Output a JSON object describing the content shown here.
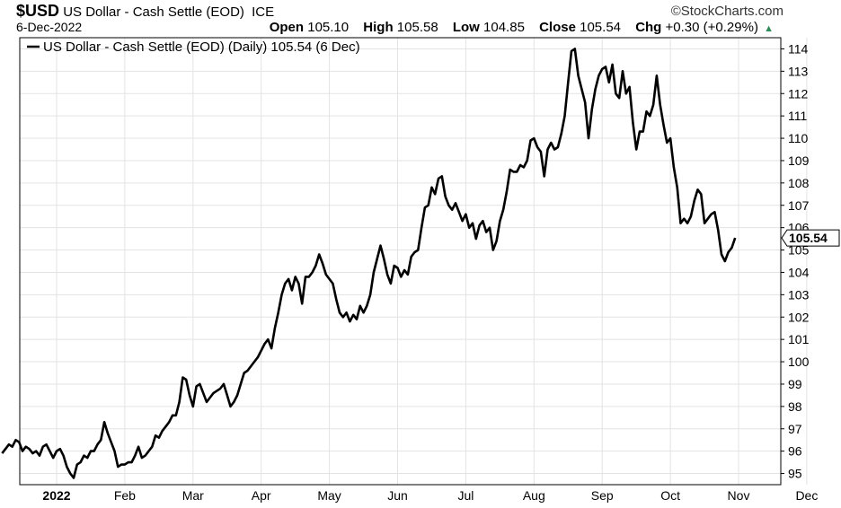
{
  "header": {
    "symbol": "$USD",
    "name": "US Dollar - Cash Settle (EOD)",
    "exchange": "ICE",
    "date": "6-Dec-2022",
    "brand": "©StockCharts.com",
    "open_label": "Open",
    "open": "105.10",
    "high_label": "High",
    "high": "105.58",
    "low_label": "Low",
    "low": "104.85",
    "close_label": "Close",
    "close": "105.54",
    "chg_label": "Chg",
    "chg": "+0.30 (+0.29%)"
  },
  "chart_data": {
    "type": "line",
    "legend": "US Dollar - Cash Settle (EOD) (Daily) 105.54 (6 Dec)",
    "legend_position": "top-left",
    "last_value_label": "105.54",
    "ylim": [
      94.5,
      114.5
    ],
    "y_ticks": [
      95,
      96,
      97,
      98,
      99,
      100,
      101,
      102,
      103,
      104,
      105,
      106,
      107,
      108,
      109,
      110,
      111,
      112,
      113,
      114
    ],
    "x_ticks": [
      {
        "label": "2022",
        "month": 0,
        "bold": true
      },
      {
        "label": "Feb",
        "month": 1
      },
      {
        "label": "Mar",
        "month": 2
      },
      {
        "label": "Apr",
        "month": 3
      },
      {
        "label": "May",
        "month": 4
      },
      {
        "label": "Jun",
        "month": 5
      },
      {
        "label": "Jul",
        "month": 6
      },
      {
        "label": "Aug",
        "month": 7
      },
      {
        "label": "Sep",
        "month": 8
      },
      {
        "label": "Oct",
        "month": 9
      },
      {
        "label": "Nov",
        "month": 10
      },
      {
        "label": "Dec",
        "month": 11
      }
    ],
    "grid": true,
    "series": [
      {
        "values": [
          [
            -0.8,
            95.9
          ],
          [
            -0.75,
            96.1
          ],
          [
            -0.7,
            96.3
          ],
          [
            -0.65,
            96.2
          ],
          [
            -0.6,
            96.5
          ],
          [
            -0.55,
            96.4
          ],
          [
            -0.5,
            96.0
          ],
          [
            -0.45,
            96.2
          ],
          [
            -0.4,
            96.1
          ],
          [
            -0.35,
            95.9
          ],
          [
            -0.3,
            96.0
          ],
          [
            -0.25,
            95.8
          ],
          [
            -0.2,
            96.2
          ],
          [
            -0.15,
            96.3
          ],
          [
            -0.1,
            96.0
          ],
          [
            -0.05,
            95.7
          ],
          [
            0.0,
            96.0
          ],
          [
            0.05,
            96.1
          ],
          [
            0.1,
            95.8
          ],
          [
            0.15,
            95.3
          ],
          [
            0.2,
            95.0
          ],
          [
            0.25,
            94.8
          ],
          [
            0.3,
            95.4
          ],
          [
            0.35,
            95.5
          ],
          [
            0.4,
            95.8
          ],
          [
            0.45,
            95.7
          ],
          [
            0.5,
            96.0
          ],
          [
            0.55,
            96.0
          ],
          [
            0.6,
            96.3
          ],
          [
            0.65,
            96.5
          ],
          [
            0.7,
            97.3
          ],
          [
            0.75,
            96.8
          ],
          [
            0.8,
            96.4
          ],
          [
            0.85,
            96.0
          ],
          [
            0.9,
            95.3
          ],
          [
            0.95,
            95.4
          ],
          [
            1.0,
            95.4
          ],
          [
            1.05,
            95.5
          ],
          [
            1.1,
            95.5
          ],
          [
            1.15,
            95.8
          ],
          [
            1.2,
            96.2
          ],
          [
            1.25,
            95.7
          ],
          [
            1.3,
            95.8
          ],
          [
            1.35,
            96.0
          ],
          [
            1.4,
            96.2
          ],
          [
            1.45,
            96.7
          ],
          [
            1.5,
            96.6
          ],
          [
            1.55,
            96.9
          ],
          [
            1.6,
            97.1
          ],
          [
            1.65,
            97.3
          ],
          [
            1.7,
            97.6
          ],
          [
            1.75,
            97.6
          ],
          [
            1.8,
            98.2
          ],
          [
            1.85,
            99.3
          ],
          [
            1.9,
            99.2
          ],
          [
            1.95,
            98.5
          ],
          [
            2.0,
            98.0
          ],
          [
            2.05,
            98.9
          ],
          [
            2.1,
            99.0
          ],
          [
            2.15,
            98.6
          ],
          [
            2.2,
            98.2
          ],
          [
            2.25,
            98.4
          ],
          [
            2.3,
            98.6
          ],
          [
            2.35,
            98.7
          ],
          [
            2.4,
            98.8
          ],
          [
            2.45,
            99.0
          ],
          [
            2.5,
            98.5
          ],
          [
            2.55,
            98.0
          ],
          [
            2.6,
            98.2
          ],
          [
            2.65,
            98.5
          ],
          [
            2.7,
            99.0
          ],
          [
            2.75,
            99.5
          ],
          [
            2.8,
            99.6
          ],
          [
            2.85,
            99.8
          ],
          [
            2.9,
            100.0
          ],
          [
            2.95,
            100.2
          ],
          [
            3.0,
            100.5
          ],
          [
            3.05,
            100.8
          ],
          [
            3.1,
            101.0
          ],
          [
            3.15,
            100.6
          ],
          [
            3.2,
            101.5
          ],
          [
            3.25,
            102.2
          ],
          [
            3.3,
            103.0
          ],
          [
            3.35,
            103.5
          ],
          [
            3.4,
            103.7
          ],
          [
            3.45,
            103.2
          ],
          [
            3.5,
            103.8
          ],
          [
            3.55,
            103.5
          ],
          [
            3.6,
            102.6
          ],
          [
            3.65,
            103.8
          ],
          [
            3.7,
            103.8
          ],
          [
            3.75,
            104.0
          ],
          [
            3.8,
            104.3
          ],
          [
            3.85,
            104.8
          ],
          [
            3.9,
            104.4
          ],
          [
            3.95,
            103.9
          ],
          [
            4.0,
            103.7
          ],
          [
            4.05,
            103.5
          ],
          [
            4.1,
            102.8
          ],
          [
            4.15,
            102.2
          ],
          [
            4.2,
            102.0
          ],
          [
            4.25,
            102.2
          ],
          [
            4.3,
            101.8
          ],
          [
            4.35,
            102.1
          ],
          [
            4.4,
            101.9
          ],
          [
            4.45,
            102.5
          ],
          [
            4.5,
            102.2
          ],
          [
            4.55,
            102.5
          ],
          [
            4.6,
            103.0
          ],
          [
            4.65,
            104.0
          ],
          [
            4.7,
            104.6
          ],
          [
            4.75,
            105.2
          ],
          [
            4.8,
            104.6
          ],
          [
            4.85,
            103.9
          ],
          [
            4.9,
            103.5
          ],
          [
            4.95,
            104.3
          ],
          [
            5.0,
            104.2
          ],
          [
            5.05,
            103.8
          ],
          [
            5.1,
            104.1
          ],
          [
            5.15,
            103.9
          ],
          [
            5.2,
            104.7
          ],
          [
            5.25,
            104.9
          ],
          [
            5.3,
            105.0
          ],
          [
            5.35,
            106.0
          ],
          [
            5.4,
            106.9
          ],
          [
            5.45,
            107.0
          ],
          [
            5.5,
            107.8
          ],
          [
            5.55,
            107.5
          ],
          [
            5.6,
            108.2
          ],
          [
            5.65,
            108.3
          ],
          [
            5.7,
            107.4
          ],
          [
            5.75,
            107.0
          ],
          [
            5.8,
            106.8
          ],
          [
            5.85,
            107.1
          ],
          [
            5.9,
            106.7
          ],
          [
            5.95,
            106.3
          ],
          [
            6.0,
            106.6
          ],
          [
            6.05,
            106.0
          ],
          [
            6.1,
            106.2
          ],
          [
            6.15,
            105.5
          ],
          [
            6.2,
            106.1
          ],
          [
            6.25,
            106.3
          ],
          [
            6.3,
            105.8
          ],
          [
            6.35,
            106.0
          ],
          [
            6.4,
            105.0
          ],
          [
            6.45,
            105.4
          ],
          [
            6.5,
            106.3
          ],
          [
            6.55,
            106.8
          ],
          [
            6.6,
            107.6
          ],
          [
            6.65,
            108.6
          ],
          [
            6.7,
            108.5
          ],
          [
            6.75,
            108.5
          ],
          [
            6.8,
            108.8
          ],
          [
            6.85,
            108.7
          ],
          [
            6.9,
            109.0
          ],
          [
            6.95,
            109.9
          ],
          [
            7.0,
            110.0
          ],
          [
            7.05,
            109.6
          ],
          [
            7.1,
            109.4
          ],
          [
            7.15,
            108.3
          ],
          [
            7.2,
            109.5
          ],
          [
            7.25,
            109.8
          ],
          [
            7.3,
            109.5
          ],
          [
            7.35,
            109.6
          ],
          [
            7.4,
            110.2
          ],
          [
            7.45,
            111.0
          ],
          [
            7.5,
            112.5
          ],
          [
            7.55,
            113.9
          ],
          [
            7.6,
            114.0
          ],
          [
            7.65,
            112.8
          ],
          [
            7.7,
            112.2
          ],
          [
            7.75,
            111.6
          ],
          [
            7.8,
            110.0
          ],
          [
            7.85,
            111.3
          ],
          [
            7.9,
            112.2
          ],
          [
            7.95,
            112.8
          ],
          [
            8.0,
            113.1
          ],
          [
            8.05,
            113.2
          ],
          [
            8.1,
            112.5
          ],
          [
            8.15,
            113.3
          ],
          [
            8.2,
            112.0
          ],
          [
            8.25,
            111.8
          ],
          [
            8.3,
            113.0
          ],
          [
            8.35,
            112.0
          ],
          [
            8.4,
            112.3
          ],
          [
            8.45,
            110.7
          ],
          [
            8.5,
            109.5
          ],
          [
            8.55,
            110.3
          ],
          [
            8.6,
            110.3
          ],
          [
            8.65,
            111.2
          ],
          [
            8.7,
            111.0
          ],
          [
            8.75,
            111.5
          ],
          [
            8.8,
            112.8
          ],
          [
            8.85,
            111.5
          ],
          [
            8.9,
            110.6
          ],
          [
            8.95,
            109.8
          ],
          [
            9.0,
            110.0
          ],
          [
            9.05,
            108.7
          ],
          [
            9.1,
            107.8
          ],
          [
            9.15,
            106.2
          ],
          [
            9.2,
            106.4
          ],
          [
            9.25,
            106.2
          ],
          [
            9.3,
            106.5
          ],
          [
            9.35,
            107.2
          ],
          [
            9.4,
            107.7
          ],
          [
            9.45,
            107.5
          ],
          [
            9.5,
            106.2
          ],
          [
            9.55,
            106.4
          ],
          [
            9.6,
            106.6
          ],
          [
            9.65,
            106.7
          ],
          [
            9.7,
            105.9
          ],
          [
            9.75,
            104.8
          ],
          [
            9.8,
            104.5
          ],
          [
            9.85,
            104.9
          ],
          [
            9.9,
            105.1
          ],
          [
            9.95,
            105.54
          ]
        ]
      }
    ]
  }
}
